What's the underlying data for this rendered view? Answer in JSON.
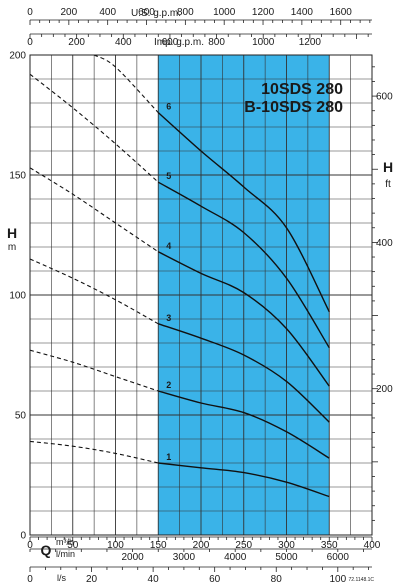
{
  "chart_data": {
    "type": "line",
    "title_lines": [
      "10SDS 280",
      "B-10SDS 280"
    ],
    "left_axis": {
      "label": "H",
      "unit": "m",
      "ticks": [
        0,
        50,
        100,
        150,
        200
      ],
      "range": [
        0,
        200
      ]
    },
    "right_axis": {
      "label": "H",
      "unit": "ft",
      "ticks": [
        200,
        400,
        600
      ]
    },
    "bottom_axes": {
      "q_label": "Q",
      "m3h_unit": "m³/h",
      "lmin_unit": "l/min",
      "ls_unit": "l/s",
      "m3h_ticks": [
        0,
        50,
        100,
        150,
        200,
        250,
        300,
        350,
        400
      ],
      "lmin_ticks": [
        2000,
        3000,
        4000,
        5000,
        6000
      ],
      "ls_ticks": [
        0,
        20,
        40,
        60,
        80,
        100
      ],
      "range_m3h": [
        0,
        400
      ]
    },
    "top_axes": {
      "usgpm_label": "U.S. g.p.m.",
      "impgpm_label": "Imp. g.p.m.",
      "usgpm_ticks": [
        0,
        200,
        400,
        600,
        800,
        1000,
        1200,
        1400,
        1600
      ],
      "impgpm_ticks": [
        0,
        200,
        400,
        600,
        800,
        1000,
        1200
      ]
    },
    "operating_range_m3h": [
      150,
      350
    ],
    "fill_color": "#3ab3e8",
    "series": [
      {
        "name": "1",
        "x": [
          0,
          50,
          100,
          150,
          200,
          250,
          300,
          350
        ],
        "y": [
          39,
          37,
          34,
          30,
          28,
          26,
          22,
          16
        ]
      },
      {
        "name": "2",
        "x": [
          0,
          50,
          100,
          150,
          200,
          250,
          300,
          350
        ],
        "y": [
          77,
          72,
          66,
          60,
          55,
          51,
          43,
          32
        ]
      },
      {
        "name": "3",
        "x": [
          0,
          50,
          100,
          150,
          200,
          250,
          300,
          350
        ],
        "y": [
          115,
          107,
          98,
          88,
          82,
          75,
          64,
          47
        ]
      },
      {
        "name": "4",
        "x": [
          0,
          50,
          100,
          150,
          200,
          250,
          300,
          350
        ],
        "y": [
          153,
          142,
          130,
          118,
          109,
          101,
          86,
          62
        ]
      },
      {
        "name": "5",
        "x": [
          0,
          50,
          100,
          150,
          200,
          250,
          300,
          350
        ],
        "y": [
          192,
          178,
          163,
          147,
          137,
          126,
          107,
          78
        ]
      },
      {
        "name": "6",
        "x": [
          75,
          100,
          150,
          200,
          250,
          300,
          350
        ],
        "y": [
          200,
          195,
          176,
          160,
          145,
          128,
          93
        ]
      }
    ],
    "catalog_code": "72.1148.1C"
  }
}
